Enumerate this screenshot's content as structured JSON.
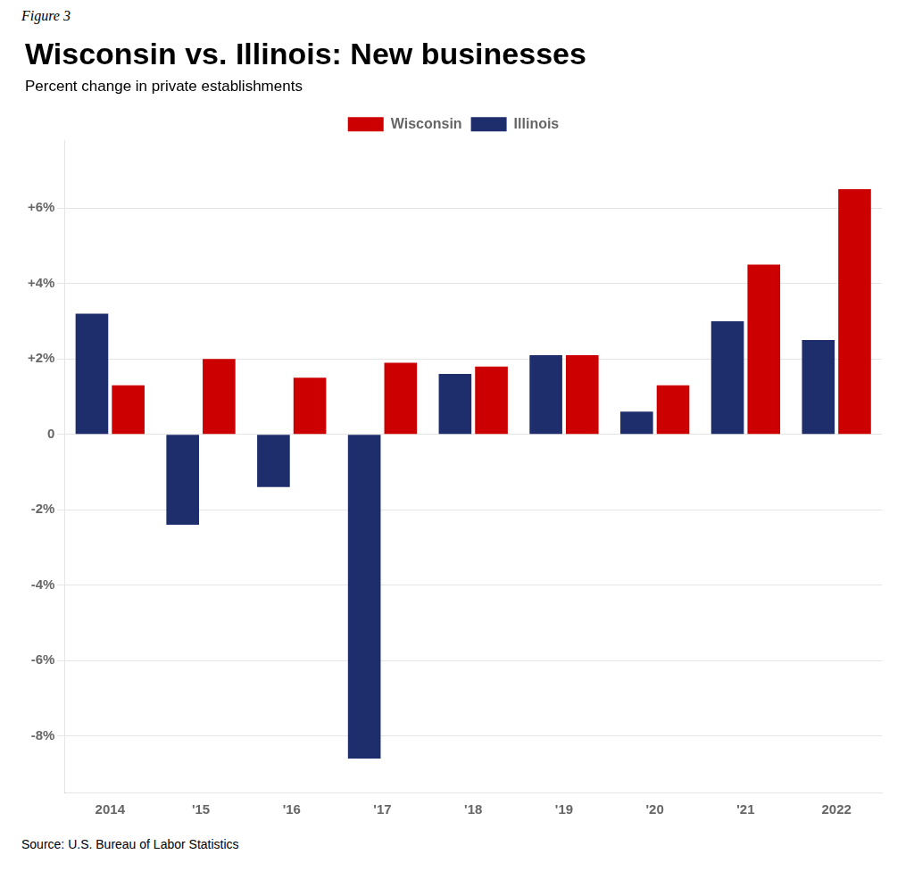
{
  "chart_data": {
    "type": "bar",
    "title": "Wisconsin vs. Illinois: New businesses",
    "subtitle": "Percent change in private establishments",
    "annotations": [
      "Figure 3",
      "Source: U.S. Bureau of Labor Statistics"
    ],
    "categories": [
      "2014",
      "'15",
      "'16",
      "'17",
      "'18",
      "'19",
      "'20",
      "'21",
      "2022"
    ],
    "series": [
      {
        "name": "Illinois",
        "color": "#1e2d6b",
        "values": [
          3.2,
          -2.4,
          -1.4,
          -8.6,
          1.6,
          2.1,
          0.6,
          3.0,
          2.5
        ]
      },
      {
        "name": "Wisconsin",
        "color": "#cc0000",
        "values": [
          1.3,
          2.0,
          1.5,
          1.9,
          1.8,
          2.1,
          1.3,
          4.5,
          6.5
        ]
      }
    ],
    "ylim": [
      -9.5,
      7.8
    ],
    "yticks": [
      {
        "value": -8,
        "label": "-8%"
      },
      {
        "value": -6,
        "label": "-6%"
      },
      {
        "value": -4,
        "label": "-4%"
      },
      {
        "value": -2,
        "label": "-2%"
      },
      0,
      {
        "value": 2,
        "label": "+2%"
      },
      {
        "value": 4,
        "label": "+4%"
      },
      {
        "value": 6,
        "label": "+6%"
      }
    ],
    "grid": true,
    "legend": "top"
  }
}
